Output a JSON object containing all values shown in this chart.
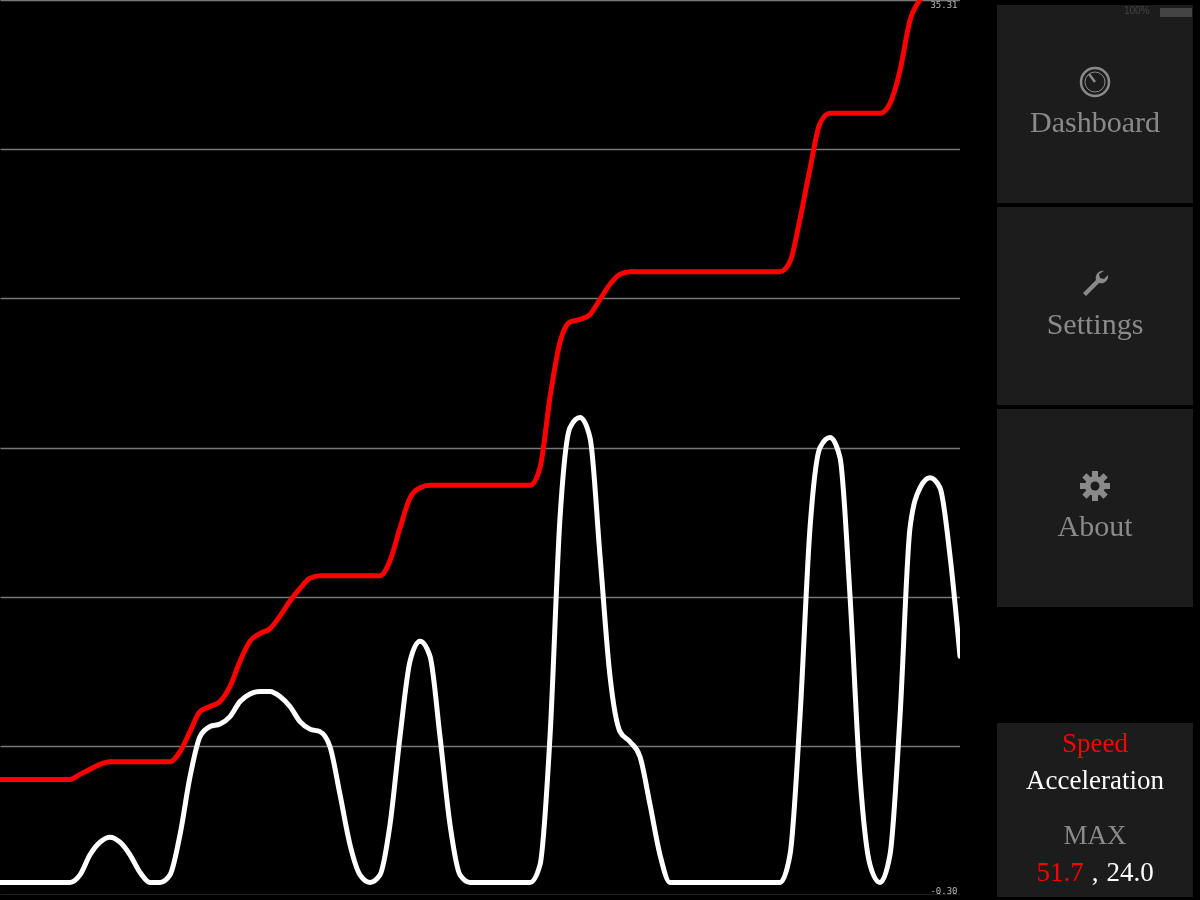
{
  "chart_data": {
    "type": "line",
    "categories": [
      null,
      null,
      null,
      null,
      null,
      null,
      null,
      null,
      null,
      null,
      null,
      null,
      null,
      null,
      null,
      null,
      null,
      null,
      null,
      null,
      null,
      null,
      null,
      null,
      null,
      null,
      null,
      null,
      null,
      null,
      null,
      null,
      null,
      null,
      null,
      null,
      null,
      null,
      null,
      null,
      null,
      null,
      null,
      null,
      null,
      null,
      null,
      null,
      null,
      null,
      null,
      null,
      null,
      null,
      null,
      null,
      null,
      null,
      null,
      null,
      null,
      null,
      null,
      null,
      null,
      null,
      null,
      null,
      null,
      null,
      null,
      null,
      null,
      null,
      null,
      null,
      null,
      null,
      null,
      null,
      null,
      null,
      null,
      null,
      null,
      null,
      null,
      null,
      null,
      null,
      null,
      null,
      null,
      null,
      null,
      null,
      null
    ],
    "series": [
      {
        "name": "Speed",
        "color": "#ff0000",
        "values": [
          4.3,
          4.3,
          4.3,
          4.3,
          4.3,
          4.3,
          4.3,
          4.3,
          4.5,
          4.7,
          4.9,
          5.0,
          5.0,
          5.0,
          5.0,
          5.0,
          5.0,
          5.0,
          5.4,
          6.2,
          7.0,
          7.2,
          7.4,
          8.0,
          9.0,
          9.8,
          10.1,
          10.3,
          10.8,
          11.4,
          11.9,
          12.3,
          12.4,
          12.4,
          12.4,
          12.4,
          12.4,
          12.4,
          12.4,
          13.0,
          14.3,
          15.5,
          15.9,
          16.0,
          16.0,
          16.0,
          16.0,
          16.0,
          16.0,
          16.0,
          16.0,
          16.0,
          16.0,
          16.0,
          16.7,
          19.5,
          21.7,
          22.5,
          22.6,
          22.8,
          23.4,
          24.0,
          24.4,
          24.5,
          24.5,
          24.5,
          24.5,
          24.5,
          24.5,
          24.5,
          24.5,
          24.5,
          24.5,
          24.5,
          24.5,
          24.5,
          24.5,
          24.5,
          24.5,
          24.9,
          26.6,
          28.6,
          30.4,
          30.8,
          30.8,
          30.8,
          30.8,
          30.8,
          30.8,
          31.2,
          32.5,
          34.5,
          35.31,
          null,
          null,
          null,
          null
        ]
      },
      {
        "name": "Acceleration",
        "color": "#ffffff",
        "values": [
          0.2,
          0.2,
          0.2,
          0.2,
          0.2,
          0.2,
          0.2,
          0.2,
          0.5,
          1.3,
          1.8,
          2.0,
          1.8,
          1.3,
          0.6,
          0.2,
          0.2,
          0.5,
          2.1,
          4.4,
          6.0,
          6.4,
          6.5,
          6.8,
          7.4,
          7.7,
          7.8,
          7.8,
          7.6,
          7.2,
          6.6,
          6.3,
          6.2,
          5.6,
          3.7,
          1.7,
          0.5,
          0.2,
          0.5,
          2.5,
          6.0,
          9.0,
          9.8,
          9.2,
          6.0,
          2.5,
          0.5,
          0.2,
          0.2,
          0.2,
          0.2,
          0.2,
          0.2,
          0.2,
          0.9,
          6.0,
          14.7,
          18.3,
          18.7,
          17.9,
          13.2,
          8.4,
          6.2,
          5.8,
          5.2,
          3.3,
          1.3,
          0.2,
          0.2,
          0.2,
          0.2,
          0.2,
          0.2,
          0.2,
          0.2,
          0.2,
          0.2,
          0.2,
          0.2,
          1.3,
          6.8,
          14.3,
          17.5,
          17.9,
          17.1,
          11.6,
          4.4,
          0.9,
          0.2,
          1.3,
          6.8,
          14.3,
          15.9,
          16.3,
          15.9,
          13.2,
          9.2
        ]
      }
    ],
    "ylim": [
      -0.3,
      35.31
    ],
    "yticks": [
      {
        "value": -0.3,
        "label": "-0.30"
      },
      {
        "value": 5.64,
        "label": null
      },
      {
        "value": 11.57,
        "label": null
      },
      {
        "value": 17.5,
        "label": null
      },
      {
        "value": 23.44,
        "label": null
      },
      {
        "value": 29.37,
        "label": null
      },
      35.31
    ],
    "tick_labels": "y",
    "grid": "y",
    "legend": "bottom right",
    "line_style": "solid",
    "annotations": [
      "100%",
      "Dashboard",
      "Settings",
      "About",
      "MAX",
      "51.7",
      ",",
      "24.0"
    ]
  }
}
